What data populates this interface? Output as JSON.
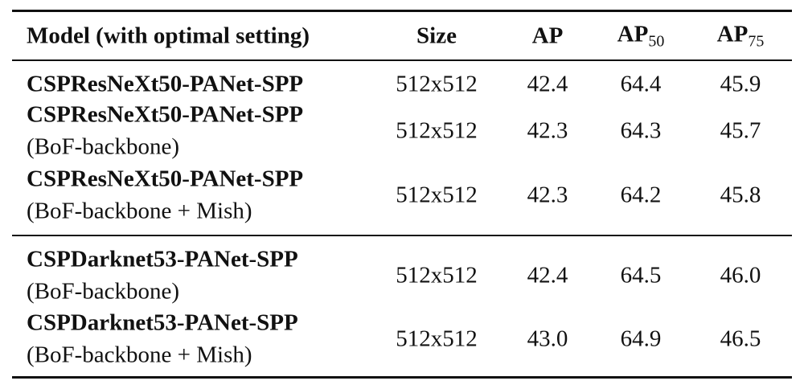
{
  "table": {
    "header": [
      {
        "text": "Model (with optimal setting)"
      },
      {
        "text": "Size"
      },
      {
        "text": "AP"
      },
      {
        "text": "AP",
        "sub": "50"
      },
      {
        "text": "AP",
        "sub": "75"
      }
    ],
    "groups": [
      [
        {
          "model": "CSPResNeXt50-PANet-SPP",
          "size": "512x512",
          "ap": "42.4",
          "ap50": "64.4",
          "ap75": "45.9"
        },
        {
          "model": "CSPResNeXt50-PANet-SPP",
          "note": "(BoF-backbone)",
          "size": "512x512",
          "ap": "42.3",
          "ap50": "64.3",
          "ap75": "45.7"
        },
        {
          "model": "CSPResNeXt50-PANet-SPP",
          "note": "(BoF-backbone + Mish)",
          "size": "512x512",
          "ap": "42.3",
          "ap50": "64.2",
          "ap75": "45.8"
        }
      ],
      [
        {
          "model": "CSPDarknet53-PANet-SPP",
          "note": "(BoF-backbone)",
          "size": "512x512",
          "ap": "42.4",
          "ap50": "64.5",
          "ap75": "46.0"
        },
        {
          "model": "CSPDarknet53-PANet-SPP",
          "note": "(BoF-backbone + Mish)",
          "size": "512x512",
          "ap": "43.0",
          "ap50": "64.9",
          "ap75": "46.5"
        }
      ]
    ]
  }
}
